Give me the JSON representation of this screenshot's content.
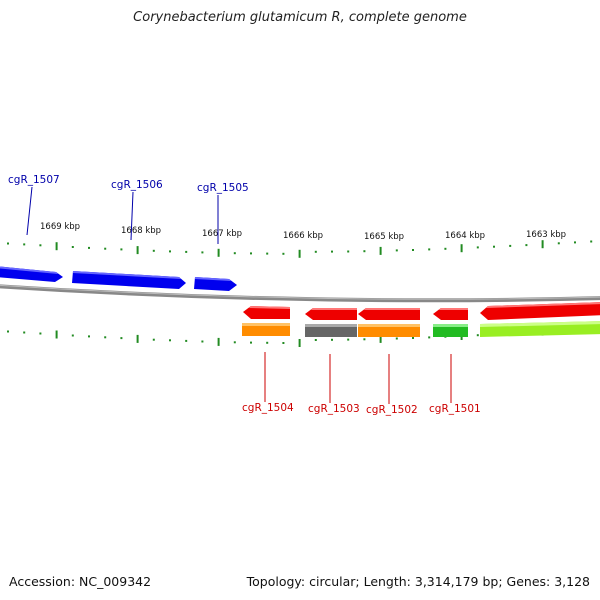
{
  "title": "Corynebacterium glutamicum R, complete genome",
  "footer": {
    "accession": "Accession: NC_009342",
    "stats": "Topology: circular; Length: 3,314,179 bp; Genes: 3,128"
  },
  "kbp_ticks": [
    "1669 kbp",
    "1668 kbp",
    "1667 kbp",
    "1666 kbp",
    "1665 kbp",
    "1664 kbp",
    "1663 kbp"
  ],
  "forward_genes": [
    {
      "id": "cgR_1507",
      "color": "#0000ee"
    },
    {
      "id": "cgR_1506",
      "color": "#0000ee"
    },
    {
      "id": "cgR_1505",
      "color": "#0000ee"
    }
  ],
  "reverse_genes": [
    {
      "id": "cgR_1504",
      "color": "#ee0000"
    },
    {
      "id": "cgR_1503",
      "color": "#ee0000"
    },
    {
      "id": "cgR_1502",
      "color": "#ee0000"
    },
    {
      "id": "cgR_1501",
      "color": "#ee0000"
    }
  ],
  "colors": {
    "forward_label": "#0000aa",
    "reverse_label": "#cc0000",
    "backbone": "#888888",
    "tick": "#228b22",
    "cog_orange": "#ff8c00",
    "cog_gray": "#666666",
    "cog_green": "#22bb22",
    "cog_lime": "#99ee22"
  }
}
